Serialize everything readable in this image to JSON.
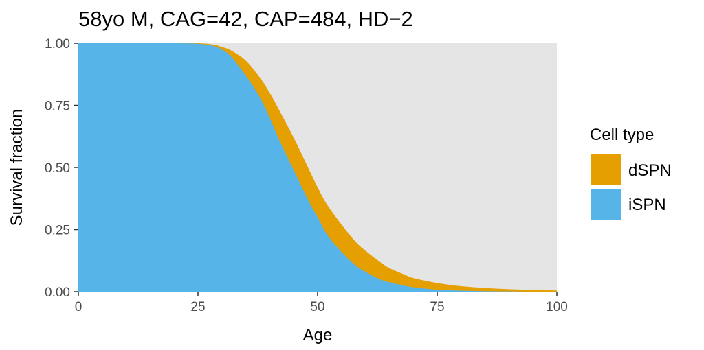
{
  "chart_data": {
    "type": "area",
    "title": "58yo M, CAG=42, CAP=484, HD−2",
    "xlabel": "Age",
    "ylabel": "Survival fraction",
    "xlim": [
      0,
      100
    ],
    "ylim": [
      0,
      1
    ],
    "x_ticks": [
      0,
      25,
      50,
      75,
      100
    ],
    "x_tick_labels": [
      "0",
      "25",
      "50",
      "75",
      "100"
    ],
    "y_ticks": [
      0,
      0.25,
      0.5,
      0.75,
      1
    ],
    "y_tick_labels": [
      "0.00",
      "0.25",
      "0.50",
      "0.75",
      "1.00"
    ],
    "grid": false,
    "panel_background": "#e5e5e5",
    "legend": {
      "title": "Cell type",
      "position": "right",
      "entries": [
        {
          "label": "dSPN",
          "color": "#e69f00"
        },
        {
          "label": "iSPN",
          "color": "#56b4e9"
        }
      ]
    },
    "x": [
      0,
      5,
      10,
      15,
      20,
      25,
      28,
      30,
      32,
      35,
      38,
      40,
      42,
      45,
      48,
      50,
      52,
      55,
      58,
      60,
      63,
      65,
      68,
      70,
      75,
      80,
      85,
      90,
      95,
      100
    ],
    "series": [
      {
        "name": "dSPN",
        "color": "#e69f00",
        "values": [
          1.0,
          1.0,
          1.0,
          1.0,
          1.0,
          1.0,
          0.995,
          0.985,
          0.97,
          0.93,
          0.86,
          0.8,
          0.73,
          0.62,
          0.5,
          0.42,
          0.35,
          0.27,
          0.2,
          0.165,
          0.12,
          0.095,
          0.07,
          0.055,
          0.035,
          0.022,
          0.015,
          0.01,
          0.007,
          0.005
        ]
      },
      {
        "name": "iSPN",
        "color": "#56b4e9",
        "values": [
          1.0,
          1.0,
          1.0,
          1.0,
          1.0,
          0.998,
          0.99,
          0.975,
          0.945,
          0.87,
          0.78,
          0.7,
          0.61,
          0.49,
          0.37,
          0.3,
          0.23,
          0.16,
          0.105,
          0.08,
          0.05,
          0.038,
          0.025,
          0.018,
          0.008,
          0.004,
          0.002,
          0.001,
          0.0,
          0.0
        ]
      }
    ]
  }
}
